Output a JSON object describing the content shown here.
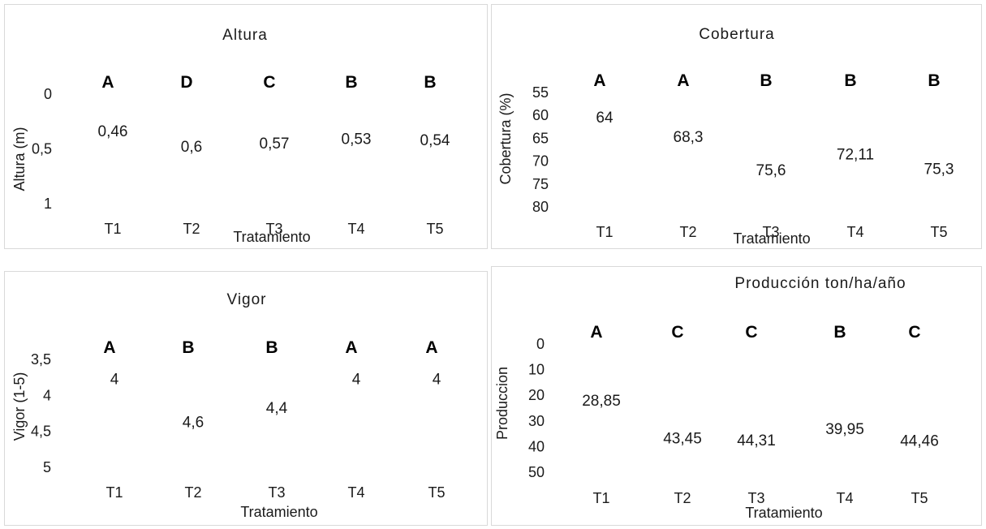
{
  "accent_color": "#4472c4",
  "chart_data": [
    {
      "type": "bar",
      "title": "Altura",
      "xlabel": "Tratamiento",
      "ylabel": "Altura (m)",
      "categories": [
        "T1",
        "T2",
        "T3",
        "T4",
        "T5"
      ],
      "values": [
        0.46,
        0.6,
        0.57,
        0.53,
        0.54
      ],
      "value_labels": [
        "0,46",
        "0,6",
        "0,57",
        "0,53",
        "0,54"
      ],
      "group_letters": [
        "A",
        "D",
        "C",
        "B",
        "B"
      ],
      "yticks": [
        "0",
        "0,5",
        "1"
      ],
      "ylim": [
        0,
        1
      ],
      "grid": false,
      "legend": "none"
    },
    {
      "type": "bar",
      "title": "Cobertura",
      "xlabel": "Tratamiento",
      "ylabel": "Cobertura (%)",
      "categories": [
        "T1",
        "T2",
        "T3",
        "T4",
        "T5"
      ],
      "values": [
        64,
        68.3,
        75.6,
        72.11,
        75.3
      ],
      "value_labels": [
        "64",
        "68,3",
        "75,6",
        "72,11",
        "75,3"
      ],
      "group_letters": [
        "A",
        "A",
        "B",
        "B",
        "B"
      ],
      "yticks": [
        "55",
        "60",
        "65",
        "70",
        "75",
        "80"
      ],
      "ylim": [
        55,
        80
      ],
      "grid": false,
      "legend": "none"
    },
    {
      "type": "bar",
      "title": "Vigor",
      "xlabel": "Tratamiento",
      "ylabel": "Vigor (1-5)",
      "categories": [
        "T1",
        "T2",
        "T3",
        "T4",
        "T5"
      ],
      "values": [
        4,
        4.6,
        4.4,
        4,
        4
      ],
      "value_labels": [
        "4",
        "4,6",
        "4,4",
        "4",
        "4"
      ],
      "group_letters": [
        "A",
        "B",
        "B",
        "A",
        "A"
      ],
      "yticks": [
        "3,5",
        "4",
        "4,5",
        "5"
      ],
      "ylim": [
        3.5,
        5
      ],
      "grid": false,
      "legend": "none"
    },
    {
      "type": "bar",
      "title": "Producción     ton/ha/año",
      "xlabel": "Tratamiento",
      "ylabel": "Produccion",
      "categories": [
        "T1",
        "T2",
        "T3",
        "T4",
        "T5"
      ],
      "values": [
        28.85,
        43.45,
        44.31,
        39.95,
        44.46
      ],
      "value_labels": [
        "28,85",
        "43,45",
        "44,31",
        "39,95",
        "44,46"
      ],
      "group_letters": [
        "A",
        "C",
        "C",
        "B",
        "C"
      ],
      "yticks": [
        "0",
        "10",
        "20",
        "30",
        "40",
        "50"
      ],
      "ylim": [
        0,
        50
      ],
      "grid": false,
      "legend": "none"
    }
  ]
}
